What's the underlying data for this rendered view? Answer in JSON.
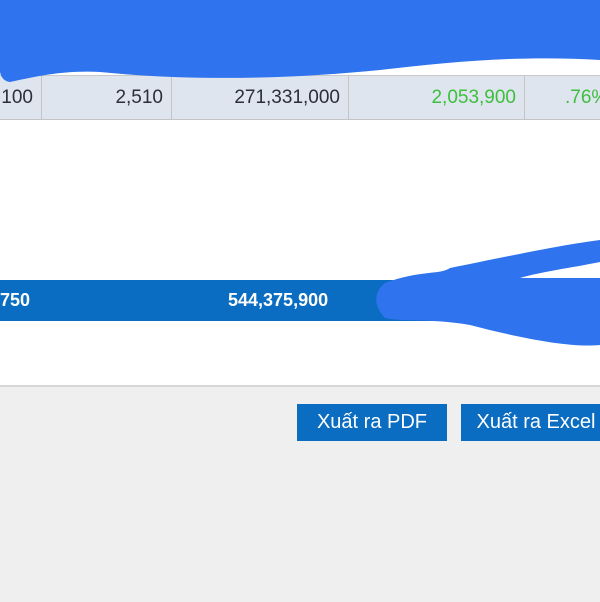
{
  "table": {
    "row": [
      "100",
      "2,510",
      "271,331,000",
      "2,053,900",
      ".76%"
    ],
    "total": {
      "left": "750",
      "amount": "544,375,900"
    }
  },
  "actions": {
    "export_pdf": "Xuất ra PDF",
    "export_excel": "Xuất ra Excel"
  },
  "colors": {
    "primary": "#0a6dc1",
    "positive": "#3cbf3c",
    "redaction": "#2f74ee"
  }
}
